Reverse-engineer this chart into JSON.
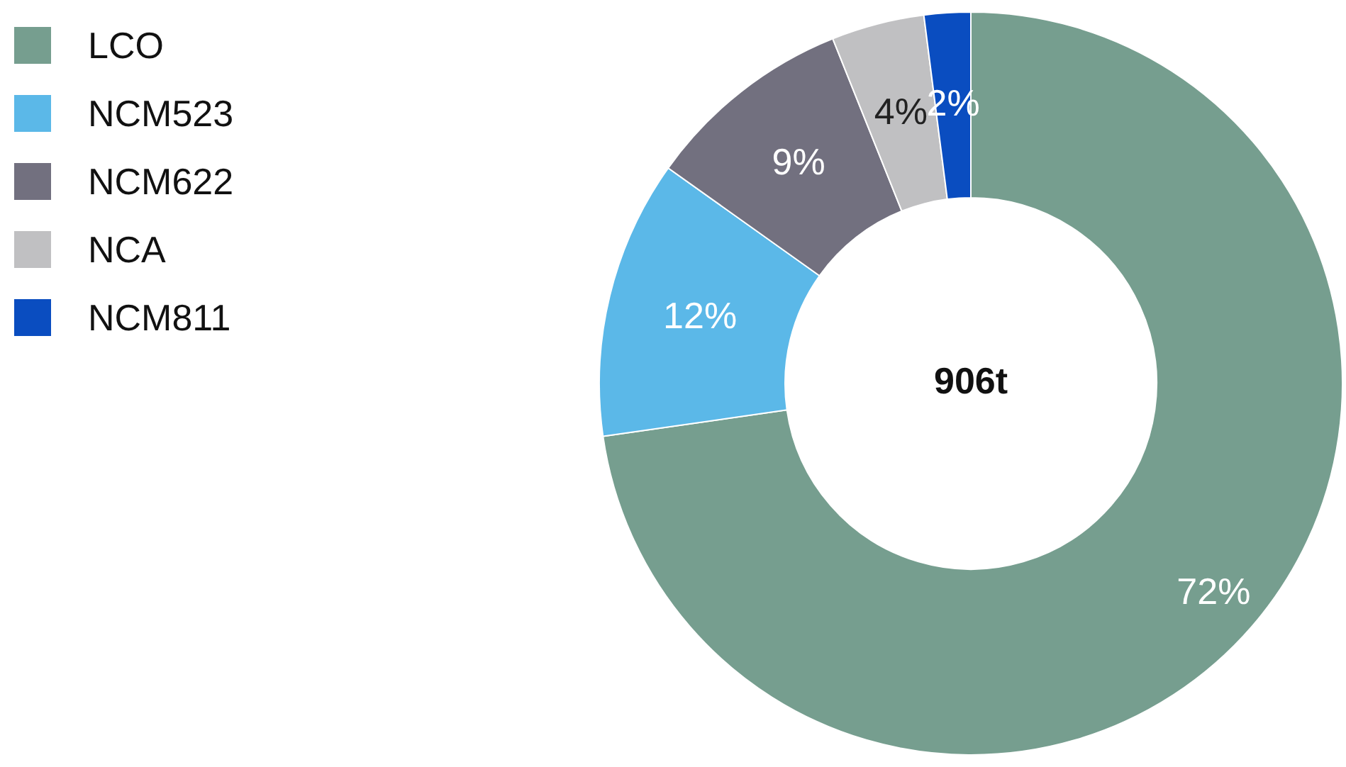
{
  "chart_data": {
    "type": "donut",
    "categories": [
      "LCO",
      "NCM523",
      "NCM622",
      "NCA",
      "NCM811"
    ],
    "values": [
      72,
      12,
      9,
      4,
      2
    ],
    "colors": [
      "#769e8f",
      "#5bb8e8",
      "#72707f",
      "#c0c0c2",
      "#0a4dc0"
    ],
    "value_labels": [
      "72%",
      "12%",
      "9%",
      "4%",
      "2%"
    ],
    "annotations": [
      "906t"
    ],
    "legend": "top left"
  }
}
